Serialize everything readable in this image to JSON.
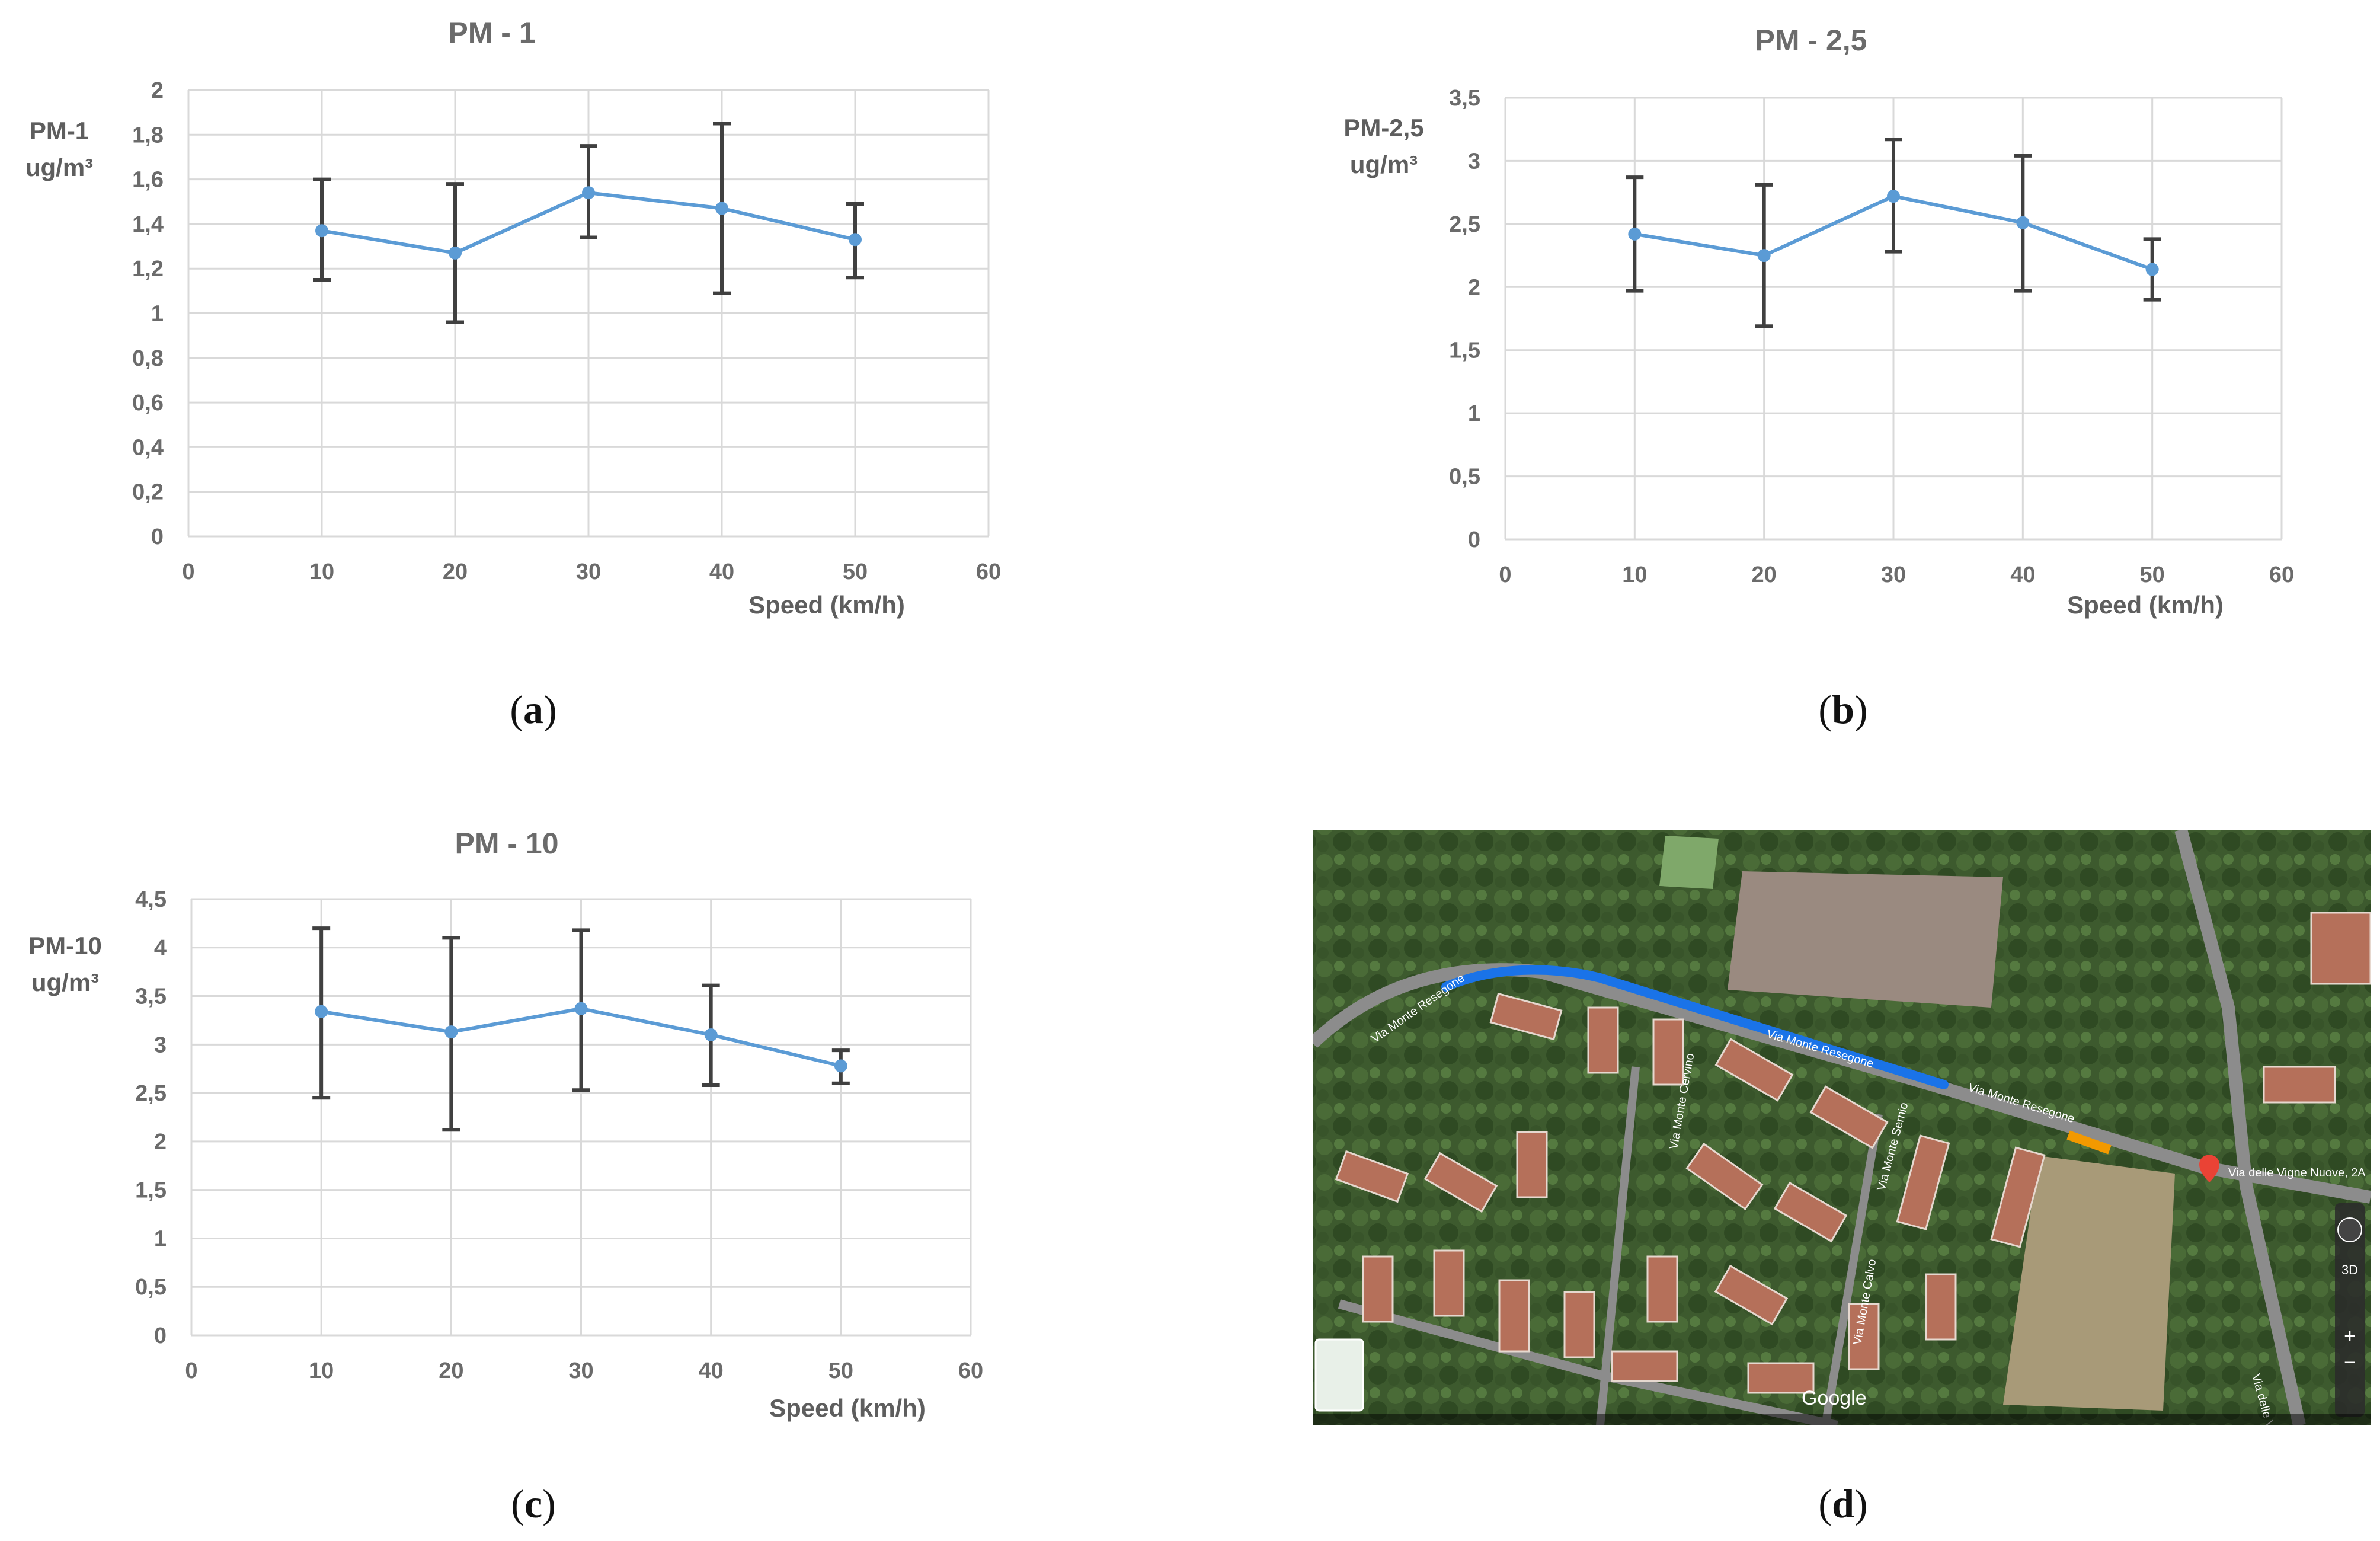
{
  "chart_data": [
    {
      "id": "a",
      "type": "line",
      "title": "PM - 1",
      "ylabel": "PM-1",
      "yunit": "ug/m³",
      "xlabel": "Speed (km/h)",
      "xlim": [
        0,
        60
      ],
      "xticks": [
        "0",
        "10",
        "20",
        "30",
        "40",
        "50",
        "60"
      ],
      "ylim": [
        0,
        2
      ],
      "yticks": [
        "0",
        "0,2",
        "0,4",
        "0,6",
        "0,8",
        "1",
        "1,2",
        "1,4",
        "1,6",
        "1,8",
        "2"
      ],
      "x": [
        10,
        20,
        30,
        40,
        50
      ],
      "values": [
        1.37,
        1.27,
        1.54,
        1.47,
        1.33
      ],
      "error_low": [
        1.15,
        0.96,
        1.34,
        1.09,
        1.16
      ],
      "error_high": [
        1.6,
        1.58,
        1.75,
        1.85,
        1.49
      ],
      "caption": "a"
    },
    {
      "id": "b",
      "type": "line",
      "title": "PM - 2,5",
      "ylabel": "PM-2,5",
      "yunit": "ug/m³",
      "xlabel": "Speed (km/h)",
      "xlim": [
        0,
        60
      ],
      "xticks": [
        "0",
        "10",
        "20",
        "30",
        "40",
        "50",
        "60"
      ],
      "ylim": [
        0,
        3.5
      ],
      "yticks": [
        "0",
        "0,5",
        "1",
        "1,5",
        "2",
        "2,5",
        "3",
        "3,5"
      ],
      "x": [
        10,
        20,
        30,
        40,
        50
      ],
      "values": [
        2.42,
        2.25,
        2.72,
        2.51,
        2.14
      ],
      "error_low": [
        1.97,
        1.69,
        2.28,
        1.97,
        1.9
      ],
      "error_high": [
        2.87,
        2.81,
        3.17,
        3.04,
        2.38
      ],
      "caption": "b"
    },
    {
      "id": "c",
      "type": "line",
      "title": "PM - 10",
      "ylabel": "PM-10",
      "yunit": "ug/m³",
      "xlabel": "Speed (km/h)",
      "xlim": [
        0,
        60
      ],
      "xticks": [
        "0",
        "10",
        "20",
        "30",
        "40",
        "50",
        "60"
      ],
      "ylim": [
        0,
        4.5
      ],
      "yticks": [
        "0",
        "0,5",
        "1",
        "1,5",
        "2",
        "2,5",
        "3",
        "3,5",
        "4",
        "4,5"
      ],
      "x": [
        10,
        20,
        30,
        40,
        50
      ],
      "values": [
        3.34,
        3.13,
        3.37,
        3.1,
        2.78
      ],
      "error_low": [
        2.45,
        2.12,
        2.53,
        2.58,
        2.6
      ],
      "error_high": [
        4.2,
        4.1,
        4.18,
        3.61,
        2.94
      ],
      "caption": "c"
    }
  ],
  "map": {
    "caption": "d",
    "attribution": "Google",
    "labels": [
      "Via Monte Resegone",
      "Via Monte Resegone",
      "Via Monte Resegone",
      "Via Monte Cervino",
      "Via Monte Calvo",
      "Via Monte Sernio",
      "Via delle Vigne Nuove",
      "Via delle Vigne Nuove, 2A"
    ],
    "controls": [
      "3D",
      "+",
      "−"
    ],
    "colors": {
      "route_blue": "#1a73e8",
      "route_orange": "#f29900",
      "pin": "#ea4335"
    }
  },
  "colors": {
    "series": "#5b9bd5",
    "error_bar": "#404040",
    "grid": "#d9d9d9"
  }
}
